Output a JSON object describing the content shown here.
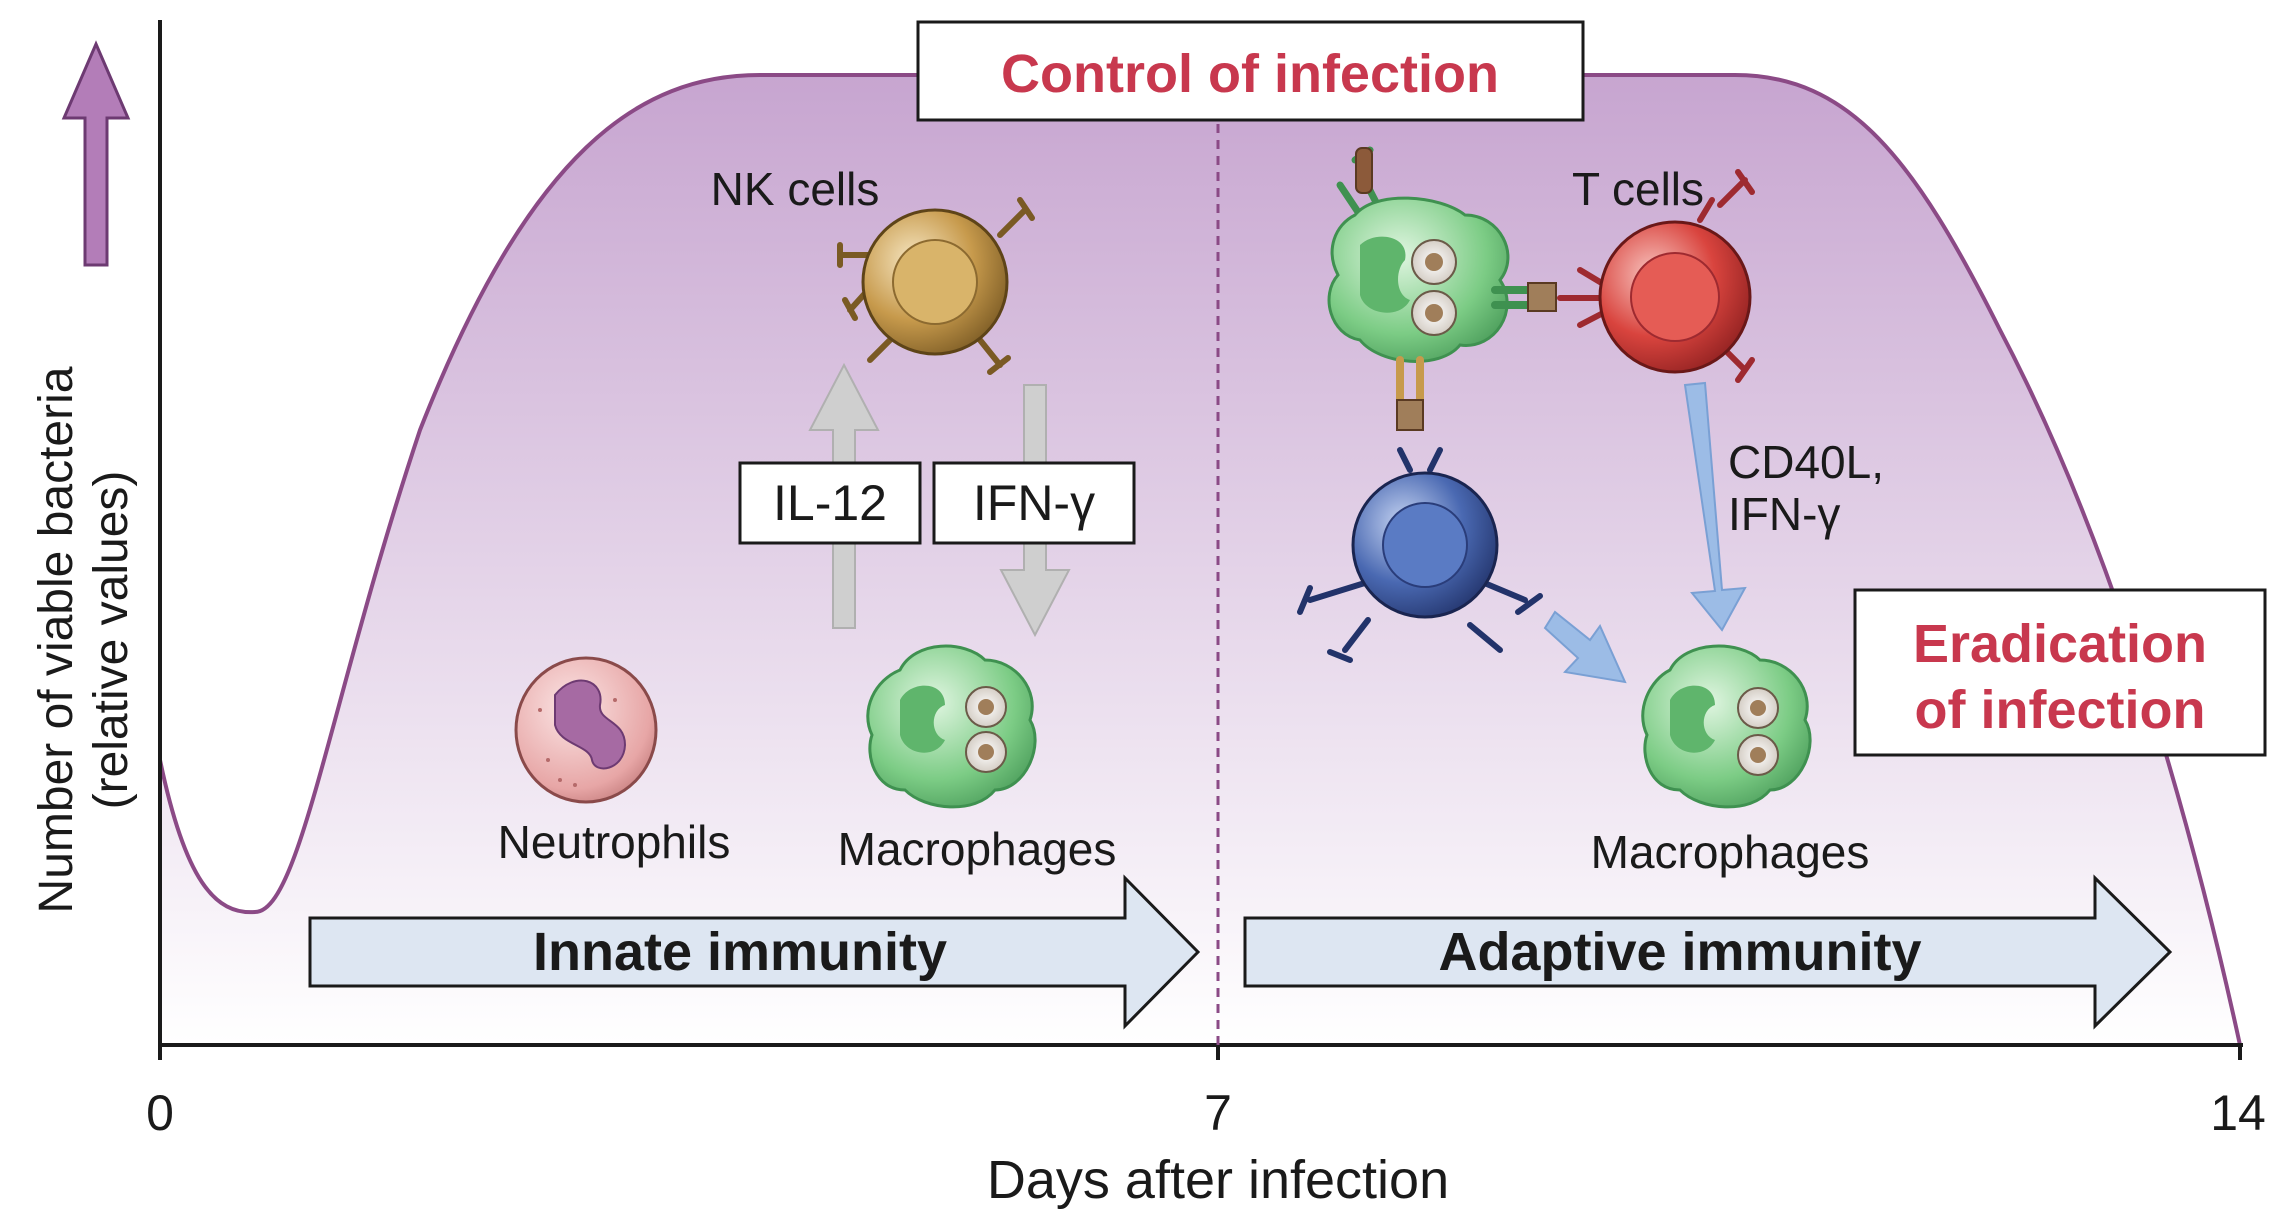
{
  "y_axis": {
    "line1": "Number of viable bacteria",
    "line2": "(relative values)"
  },
  "x_axis": {
    "title": "Days after infection",
    "ticks": [
      "0",
      "7",
      "14"
    ]
  },
  "callouts": {
    "control": "Control of infection",
    "eradication_line1": "Eradication",
    "eradication_line2": "of infection"
  },
  "innate": {
    "arrow_label": "Innate immunity",
    "nk_label": "NK cells",
    "neutrophils_label": "Neutrophils",
    "macrophages_label": "Macrophages",
    "il12": "IL-12",
    "ifng": "IFN-γ"
  },
  "adaptive": {
    "arrow_label": "Adaptive immunity",
    "tcells_label": "T cells",
    "macrophages_label": "Macrophages",
    "cd40l_line1": "CD40L,",
    "cd40l_line2": "IFN-γ"
  },
  "colors": {
    "curve": "#8b4a86",
    "fill_top": "#c7a5d0",
    "fill_bottom": "#ffffff",
    "callout_red": "#c8384e",
    "arrow_fill": "#dde6f2",
    "tcell": "#d9443e",
    "bcell": "#3f5fa8",
    "nkcell": "#c79a4c",
    "macrophage": "#7ccc85",
    "neutrophil": "#e7a6a6"
  }
}
